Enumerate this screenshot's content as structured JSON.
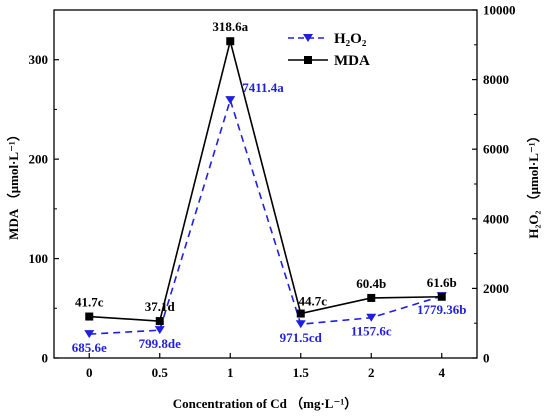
{
  "chart_data": {
    "type": "line",
    "xlabel": "Concentration of Cd （mg·L⁻¹）",
    "ylabel_left": "MDA （μmol·L⁻¹）",
    "ylabel_right": "H₂O₂ （μmol·L⁻¹）",
    "x_categories": [
      "0",
      "0.5",
      "1",
      "1.5",
      "2",
      "4"
    ],
    "y_left": {
      "min": 0,
      "max": 350,
      "ticks": [
        "0",
        "100",
        "200",
        "300"
      ]
    },
    "y_right": {
      "min": 0,
      "max": 10000,
      "ticks": [
        "0",
        "2000",
        "4000",
        "6000",
        "8000",
        "10000"
      ]
    },
    "legend_position": "top-center",
    "series": [
      {
        "name": "H₂O₂",
        "axis": "right",
        "color": "#1f1fe0",
        "line_style": "dashed",
        "marker": "triangle-down",
        "values": [
          685.6,
          799.8,
          7411.4,
          971.5,
          1157.6,
          1779.36
        ],
        "labels": [
          "685.6e",
          "799.8de",
          "7411.4a",
          "971.5cd",
          "1157.6c",
          "1779.36b"
        ]
      },
      {
        "name": "MDA",
        "axis": "left",
        "color": "#000000",
        "line_style": "solid",
        "marker": "square",
        "values": [
          41.7,
          37.1,
          318.6,
          44.7,
          60.4,
          61.6
        ],
        "labels": [
          "41.7c",
          "37.1d",
          "318.6a",
          "44.7c",
          "60.4b",
          "61.6b"
        ]
      }
    ]
  }
}
